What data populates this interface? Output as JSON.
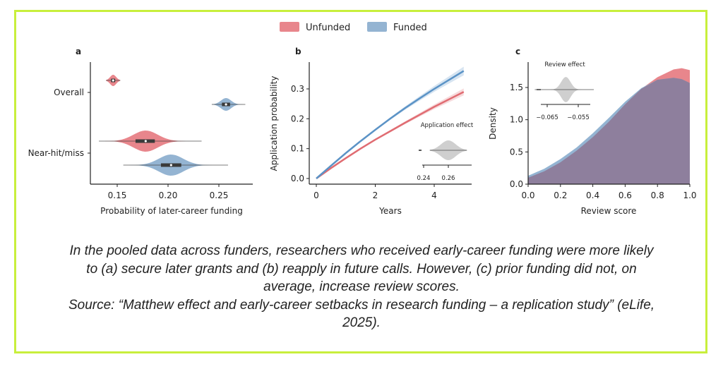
{
  "legend": [
    {
      "label": "Unfunded",
      "color": "#e8868c"
    },
    {
      "label": "Funded",
      "color": "#94b4d2"
    }
  ],
  "colors": {
    "unfunded": "#e8868c",
    "funded": "#94b4d2",
    "overlap": "#8e7f9d",
    "unfunded_line": "#e06c72",
    "funded_line": "#5b93c6",
    "inset": "#cfcfcf",
    "border": "#c8ef3c"
  },
  "chart_data": [
    {
      "type": "violin",
      "panel_label": "a",
      "xlabel": "Probability of later-career funding",
      "xlim": [
        0.124,
        0.282
      ],
      "xticks": [
        "0.15",
        "0.20",
        "0.25"
      ],
      "xtick_values": [
        0.15,
        0.2,
        0.25
      ],
      "categories": [
        "Overall",
        "Near-hit/miss"
      ],
      "series": [
        {
          "name": "Unfunded",
          "category": "Overall",
          "median": 0.146,
          "q1": 0.144,
          "q3": 0.148,
          "min": 0.139,
          "max": 0.153,
          "spread": 0.003
        },
        {
          "name": "Funded",
          "category": "Overall",
          "median": 0.257,
          "q1": 0.253,
          "q3": 0.261,
          "min": 0.243,
          "max": 0.276,
          "spread": 0.005
        },
        {
          "name": "Unfunded",
          "category": "Near-hit/miss",
          "median": 0.178,
          "q1": 0.168,
          "q3": 0.187,
          "min": 0.132,
          "max": 0.233,
          "spread": 0.012
        },
        {
          "name": "Funded",
          "category": "Near-hit/miss",
          "median": 0.203,
          "q1": 0.193,
          "q3": 0.213,
          "min": 0.156,
          "max": 0.259,
          "spread": 0.012
        }
      ]
    },
    {
      "type": "line",
      "panel_label": "b",
      "xlabel": "Years",
      "ylabel": "Application probability",
      "xlim": [
        -0.25,
        5.25
      ],
      "ylim": [
        -0.02,
        0.39
      ],
      "xticks": [
        "0",
        "2",
        "4"
      ],
      "xtick_values": [
        0,
        2,
        4
      ],
      "yticks": [
        "0.0",
        "0.1",
        "0.2",
        "0.3"
      ],
      "ytick_values": [
        0,
        0.1,
        0.2,
        0.3
      ],
      "x": [
        0,
        0.5,
        1,
        1.5,
        2,
        2.5,
        3,
        3.5,
        4,
        4.5,
        5
      ],
      "series": [
        {
          "name": "Unfunded",
          "values": [
            0,
            0.035,
            0.068,
            0.1,
            0.13,
            0.158,
            0.186,
            0.213,
            0.24,
            0.265,
            0.29
          ]
        },
        {
          "name": "Funded",
          "values": [
            0,
            0.043,
            0.085,
            0.125,
            0.163,
            0.2,
            0.235,
            0.268,
            0.3,
            0.33,
            0.36
          ]
        }
      ],
      "inset": {
        "title": "Application effect",
        "xticks": [
          "0.24",
          "0.26"
        ],
        "xtick_values": [
          0.24,
          0.26
        ],
        "median": 0.26,
        "min": 0.245,
        "max": 0.275,
        "spread": 0.006
      }
    },
    {
      "type": "area",
      "panel_label": "c",
      "xlabel": "Review score",
      "ylabel": "Density",
      "xlim": [
        0,
        1
      ],
      "ylim": [
        0,
        1.85
      ],
      "xticks": [
        "0.0",
        "0.2",
        "0.4",
        "0.6",
        "0.8",
        "1.0"
      ],
      "xtick_values": [
        0,
        0.2,
        0.4,
        0.6,
        0.8,
        1
      ],
      "yticks": [
        "0.0",
        "0.5",
        "1.0",
        "1.5"
      ],
      "ytick_values": [
        0,
        0.5,
        1,
        1.5
      ],
      "x": [
        0,
        0.1,
        0.2,
        0.3,
        0.4,
        0.5,
        0.6,
        0.7,
        0.8,
        0.9,
        0.95,
        1.0
      ],
      "series": [
        {
          "name": "Unfunded",
          "values": [
            0.1,
            0.2,
            0.34,
            0.52,
            0.73,
            0.97,
            1.24,
            1.48,
            1.66,
            1.78,
            1.8,
            1.77
          ]
        },
        {
          "name": "Funded",
          "values": [
            0.13,
            0.24,
            0.39,
            0.57,
            0.79,
            1.03,
            1.28,
            1.49,
            1.62,
            1.65,
            1.63,
            1.57
          ]
        }
      ],
      "inset": {
        "title": "Review effect",
        "xticks": [
          "−0.065",
          "−0.055"
        ],
        "xtick_values": [
          -0.065,
          -0.055
        ],
        "median": -0.059,
        "min": -0.069,
        "max": -0.05,
        "spread": 0.0015
      }
    }
  ],
  "caption": {
    "lines": [
      "In the pooled data across funders, researchers who received early-career funding were more likely",
      "to (a) secure later grants and (b) reapply in future calls. However, (c) prior funding did not, on",
      "average, increase review scores.",
      "Source: “Matthew effect and early-career setbacks in research funding – a replication study” (eLife,",
      "2025)."
    ]
  }
}
